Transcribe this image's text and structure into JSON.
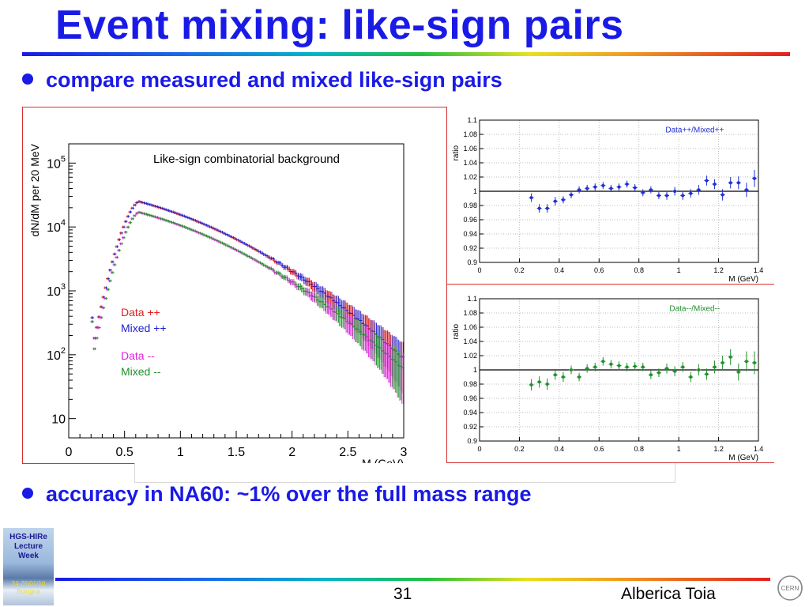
{
  "slide": {
    "title": "Event mixing: like-sign pairs",
    "bullet1": "compare measured and mixed like-sign pairs",
    "bullet2": "accuracy in NA60: ~1% over the full mass range",
    "page_number": "31",
    "author": "Alberica Toia",
    "logo_text": "HGS-HIRe Lecture Week",
    "logo_date": "24-29/01/10 Bologna",
    "cern_label": "CERN",
    "colors": {
      "title": "#1a1ae6",
      "panel_border": "#d83030"
    }
  },
  "chart_data": [
    {
      "type": "scatter",
      "title": "Like-sign combinatorial background",
      "xlabel": "M (GeV)",
      "ylabel": "dN/dM per 20 MeV",
      "xlim": [
        0,
        3
      ],
      "ylim": [
        5,
        200000
      ],
      "yscale": "log",
      "xticks": [
        "0",
        "0.5",
        "1",
        "1.5",
        "2",
        "2.5",
        "3"
      ],
      "yticks": [
        {
          "value": 10,
          "base": "10",
          "exp": ""
        },
        {
          "value": 100,
          "base": "10",
          "exp": "2"
        },
        {
          "value": 1000,
          "base": "10",
          "exp": "3"
        },
        {
          "value": 10000,
          "base": "10",
          "exp": "4"
        },
        {
          "value": 100000,
          "base": "10",
          "exp": "5"
        }
      ],
      "legend_placement": "left-middle",
      "legend": [
        {
          "label": "Data ++",
          "color": "#e02020"
        },
        {
          "label": "Mixed ++",
          "color": "#2020d0"
        },
        {
          "label": "Data --",
          "color": "#e020e0"
        },
        {
          "label": "Mixed --",
          "color": "#20902a"
        }
      ],
      "series": [
        {
          "name": "Data ++",
          "color": "#e02020",
          "peak": 25000
        },
        {
          "name": "Mixed ++",
          "color": "#2020d0",
          "peak": 25000
        },
        {
          "name": "Data --",
          "color": "#e020e0",
          "peak": 17000
        },
        {
          "name": "Mixed --",
          "color": "#20902a",
          "peak": 17000
        }
      ]
    },
    {
      "type": "scatter",
      "ylabel": "ratio",
      "xlabel": "M (GeV)",
      "xlim": [
        0,
        1.4
      ],
      "ylim": [
        0.9,
        1.1
      ],
      "grid": true,
      "legend_placement": "top-right",
      "label": "Data++/Mixed++",
      "color": "#2030d0",
      "xticks": [
        "0",
        "0.2",
        "0.4",
        "0.6",
        "0.8",
        "1",
        "1.2",
        "1.4"
      ],
      "yticks": [
        "0.9",
        "0.92",
        "0.94",
        "0.96",
        "0.98",
        "1",
        "1.02",
        "1.04",
        "1.06",
        "1.08",
        "1.1"
      ],
      "x": [
        0.26,
        0.3,
        0.34,
        0.38,
        0.42,
        0.46,
        0.5,
        0.54,
        0.58,
        0.62,
        0.66,
        0.7,
        0.74,
        0.78,
        0.82,
        0.86,
        0.9,
        0.94,
        0.98,
        1.02,
        1.06,
        1.1,
        1.14,
        1.18,
        1.22,
        1.26,
        1.3,
        1.34,
        1.38
      ],
      "y": [
        0.991,
        0.976,
        0.976,
        0.986,
        0.988,
        0.995,
        1.002,
        1.004,
        1.006,
        1.008,
        1.004,
        1.006,
        1.01,
        1.005,
        0.998,
        1.002,
        0.994,
        0.994,
        1.0,
        0.994,
        0.997,
        1.002,
        1.015,
        1.01,
        0.995,
        1.012,
        1.012,
        1.002,
        1.018
      ],
      "err": [
        0.006,
        0.006,
        0.006,
        0.006,
        0.005,
        0.005,
        0.005,
        0.005,
        0.005,
        0.005,
        0.005,
        0.005,
        0.005,
        0.005,
        0.005,
        0.005,
        0.005,
        0.006,
        0.006,
        0.006,
        0.006,
        0.007,
        0.007,
        0.007,
        0.008,
        0.008,
        0.009,
        0.01,
        0.012
      ]
    },
    {
      "type": "scatter",
      "ylabel": "ratio",
      "xlabel": "M (GeV)",
      "xlim": [
        0,
        1.4
      ],
      "ylim": [
        0.9,
        1.1
      ],
      "grid": true,
      "legend_placement": "top-right",
      "label": "Data--/Mixed--",
      "color": "#20902a",
      "xticks": [
        "0",
        "0.2",
        "0.4",
        "0.6",
        "0.8",
        "1",
        "1.2",
        "1.4"
      ],
      "yticks": [
        "0.9",
        "0.92",
        "0.94",
        "0.96",
        "0.98",
        "1",
        "1.02",
        "1.04",
        "1.06",
        "1.08",
        "1.1"
      ],
      "x": [
        0.26,
        0.3,
        0.34,
        0.38,
        0.42,
        0.46,
        0.5,
        0.54,
        0.58,
        0.62,
        0.66,
        0.7,
        0.74,
        0.78,
        0.82,
        0.86,
        0.9,
        0.94,
        0.98,
        1.02,
        1.06,
        1.1,
        1.14,
        1.18,
        1.22,
        1.26,
        1.3,
        1.34,
        1.38
      ],
      "y": [
        0.979,
        0.983,
        0.98,
        0.993,
        0.99,
        1.0,
        0.99,
        1.002,
        1.004,
        1.012,
        1.008,
        1.006,
        1.004,
        1.005,
        1.004,
        0.993,
        0.996,
        1.002,
        0.998,
        1.004,
        0.99,
        1.0,
        0.994,
        1.004,
        1.01,
        1.018,
        0.997,
        1.012,
        1.01
      ],
      "err": [
        0.008,
        0.008,
        0.008,
        0.007,
        0.007,
        0.006,
        0.006,
        0.006,
        0.006,
        0.006,
        0.006,
        0.006,
        0.006,
        0.006,
        0.006,
        0.006,
        0.006,
        0.007,
        0.007,
        0.007,
        0.007,
        0.008,
        0.008,
        0.009,
        0.01,
        0.011,
        0.012,
        0.014,
        0.016
      ]
    }
  ]
}
